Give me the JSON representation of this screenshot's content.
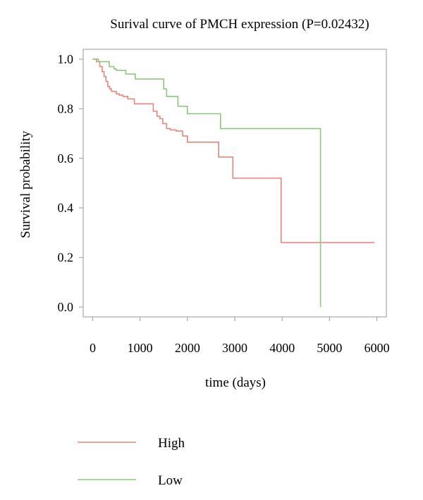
{
  "chart_data": {
    "type": "line",
    "title": "Surival curve of PMCH expression (P=0.02432)",
    "xlabel": "time (days)",
    "ylabel": "Survival probability",
    "xlim": [
      -200,
      6200
    ],
    "ylim": [
      -0.04,
      1.04
    ],
    "x_ticks": [
      0,
      1000,
      2000,
      3000,
      4000,
      5000,
      6000
    ],
    "y_ticks": [
      0.0,
      0.2,
      0.4,
      0.6,
      0.8,
      1.0
    ],
    "x_tick_labels": [
      "0",
      "1000",
      "2000",
      "3000",
      "4000",
      "5000",
      "6000"
    ],
    "y_tick_labels": [
      "0.0",
      "0.2",
      "0.4",
      "0.6",
      "0.8",
      "1.0"
    ],
    "grid": false,
    "legend_position": "bottom-left",
    "step": true,
    "series": [
      {
        "name": "High",
        "color": "#e8857a",
        "x": [
          0,
          80,
          150,
          200,
          240,
          280,
          320,
          360,
          400,
          450,
          500,
          560,
          640,
          740,
          880,
          1020,
          1280,
          1360,
          1420,
          1480,
          1560,
          1640,
          1760,
          1900,
          2000,
          2660,
          2960,
          3980,
          4200,
          4800,
          5950
        ],
        "y": [
          1.0,
          0.99,
          0.97,
          0.95,
          0.93,
          0.91,
          0.89,
          0.88,
          0.87,
          0.87,
          0.86,
          0.855,
          0.85,
          0.84,
          0.82,
          0.82,
          0.79,
          0.77,
          0.76,
          0.74,
          0.72,
          0.715,
          0.71,
          0.69,
          0.665,
          0.605,
          0.52,
          0.26,
          0.26,
          0.26,
          0.26
        ]
      },
      {
        "name": "Low",
        "color": "#8cc87c",
        "x": [
          0,
          120,
          350,
          450,
          500,
          700,
          900,
          1000,
          1500,
          1560,
          1800,
          2000,
          2700,
          4800,
          4810
        ],
        "y": [
          1.0,
          0.99,
          0.97,
          0.96,
          0.955,
          0.94,
          0.92,
          0.92,
          0.88,
          0.85,
          0.81,
          0.78,
          0.72,
          0.72,
          0.0
        ]
      }
    ]
  }
}
